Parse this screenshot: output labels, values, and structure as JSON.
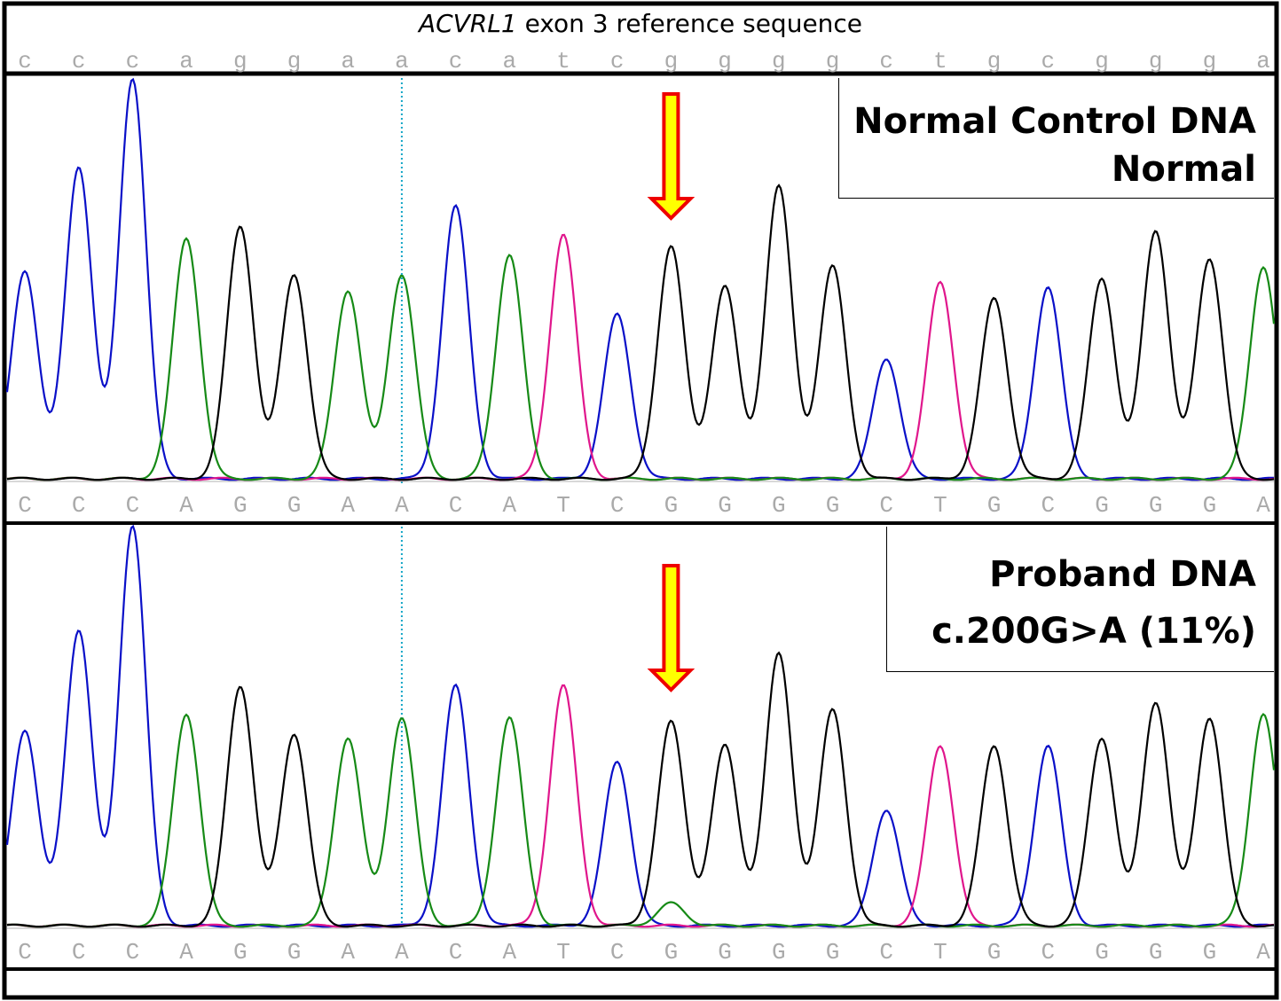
{
  "title": {
    "gene": "ACVRL1",
    "rest": " exon 3 reference sequence"
  },
  "reference_sequence": [
    "c",
    "c",
    "c",
    "a",
    "g",
    "g",
    "a",
    "a",
    "c",
    "a",
    "t",
    "c",
    "g",
    "g",
    "g",
    "g",
    "c",
    "t",
    "g",
    "c",
    "g",
    "g",
    "g",
    "a"
  ],
  "colors": {
    "A": "#168a16",
    "C": "#0a10c8",
    "G": "#000000",
    "T": "#e0168c",
    "marker_line": "#12a6c6",
    "arrow_fill": "#ffff00",
    "arrow_stroke": "#ee0000",
    "base_letters": "#aaaaaa"
  },
  "chart_data": [
    {
      "type": "line",
      "panel": "Normal Control DNA",
      "label_line1": "Normal Control DNA",
      "label_line2": "Normal",
      "basecalls": [
        "C",
        "C",
        "C",
        "A",
        "G",
        "G",
        "A",
        "A",
        "C",
        "A",
        "T",
        "C",
        "G",
        "G",
        "G",
        "G",
        "C",
        "T",
        "G",
        "C",
        "G",
        "G",
        "G",
        "A"
      ],
      "peak_heights": [
        0.52,
        0.78,
        1.0,
        0.6,
        0.63,
        0.51,
        0.47,
        0.51,
        0.68,
        0.56,
        0.61,
        0.41,
        0.58,
        0.48,
        0.73,
        0.53,
        0.3,
        0.49,
        0.45,
        0.48,
        0.5,
        0.62,
        0.55,
        0.53
      ],
      "secondary_peak": null,
      "arrow_position": 12
    },
    {
      "type": "line",
      "panel": "Proband DNA",
      "label_line1": "Proband DNA",
      "label_line2": "c.200G>A (11%)",
      "basecalls": [
        "C",
        "C",
        "C",
        "A",
        "G",
        "G",
        "A",
        "A",
        "C",
        "A",
        "T",
        "C",
        "G",
        "G",
        "G",
        "G",
        "C",
        "T",
        "G",
        "C",
        "G",
        "G",
        "G",
        "A"
      ],
      "peak_heights": [
        0.49,
        0.74,
        1.0,
        0.53,
        0.6,
        0.48,
        0.47,
        0.52,
        0.6,
        0.52,
        0.6,
        0.41,
        0.51,
        0.45,
        0.68,
        0.54,
        0.29,
        0.45,
        0.45,
        0.45,
        0.47,
        0.56,
        0.52,
        0.53
      ],
      "secondary_peak": {
        "position": 12,
        "base": "A",
        "fraction": 0.11
      },
      "arrow_position": 12
    }
  ]
}
